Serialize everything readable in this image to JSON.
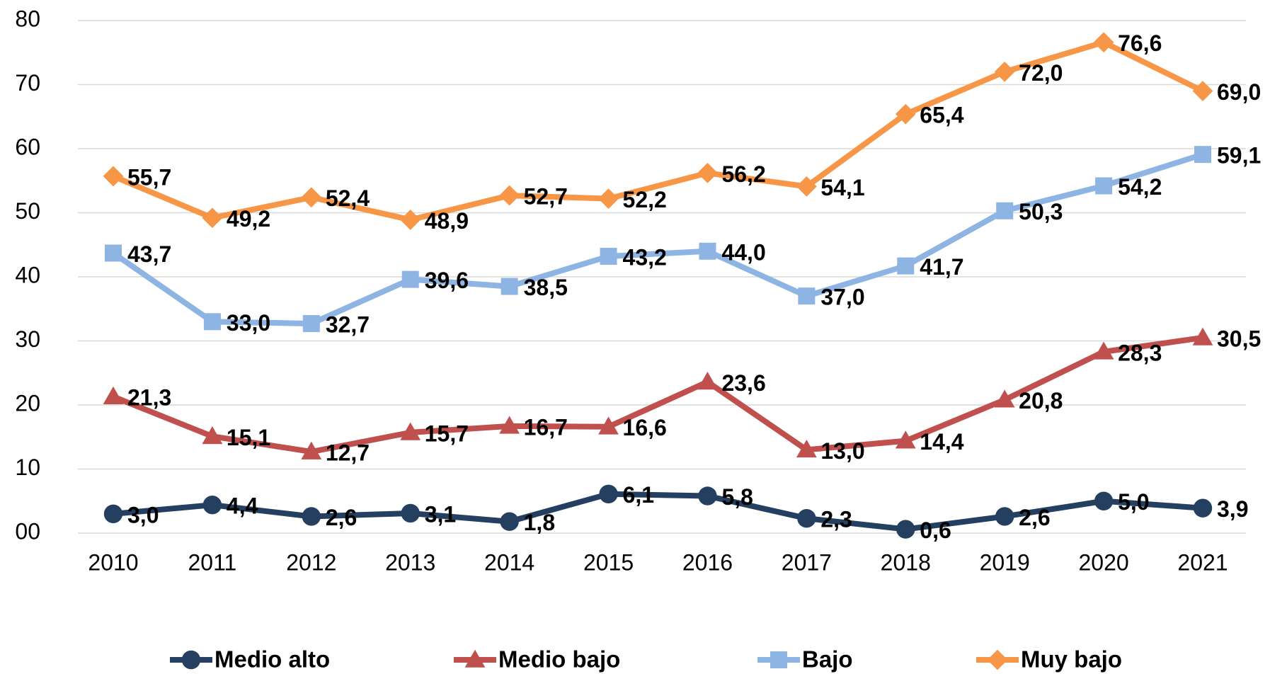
{
  "chart_data": {
    "type": "line",
    "categories": [
      "2010",
      "2011",
      "2012",
      "2013",
      "2014",
      "2015",
      "2016",
      "2017",
      "2018",
      "2019",
      "2020",
      "2021"
    ],
    "ylim": [
      0,
      80
    ],
    "yticks": [
      {
        "value": 0,
        "label": "00"
      },
      10,
      20,
      30,
      40,
      50,
      60,
      70,
      80
    ],
    "grid": true,
    "legend": "bottom",
    "series": [
      {
        "name": "Medio alto",
        "color": "#243f60",
        "marker": "circle",
        "values": [
          3.0,
          4.4,
          2.6,
          3.1,
          1.8,
          6.1,
          5.8,
          2.3,
          0.6,
          2.6,
          5.0,
          3.9
        ],
        "value_labels": [
          "3,0",
          "4,4",
          "2,6",
          "3,1",
          "1,8",
          "6,1",
          "5,8",
          "2,3",
          "0,6",
          "2,6",
          "5,0",
          "3,9"
        ]
      },
      {
        "name": "Medio bajo",
        "color": "#c0504d",
        "marker": "triangle",
        "values": [
          21.3,
          15.1,
          12.7,
          15.7,
          16.7,
          16.6,
          23.6,
          13.0,
          14.4,
          20.8,
          28.3,
          30.5
        ],
        "value_labels": [
          "21,3",
          "15,1",
          "12,7",
          "15,7",
          "16,7",
          "16,6",
          "23,6",
          "13,0",
          "14,4",
          "20,8",
          "28,3",
          "30,5"
        ]
      },
      {
        "name": "Bajo",
        "color": "#8eb4e3",
        "marker": "square",
        "values": [
          43.7,
          33.0,
          32.7,
          39.6,
          38.5,
          43.2,
          44.0,
          37.0,
          41.7,
          50.3,
          54.2,
          59.1
        ],
        "value_labels": [
          "43,7",
          "33,0",
          "32,7",
          "39,6",
          "38,5",
          "43,2",
          "44,0",
          "37,0",
          "41,7",
          "50,3",
          "54,2",
          "59,1"
        ]
      },
      {
        "name": "Muy bajo",
        "color": "#f79646",
        "marker": "diamond",
        "values": [
          55.7,
          49.2,
          52.4,
          48.9,
          52.7,
          52.2,
          56.2,
          54.1,
          65.4,
          72.0,
          76.6,
          69.0
        ],
        "value_labels": [
          "55,7",
          "49,2",
          "52,4",
          "48,9",
          "52,7",
          "52,2",
          "56,2",
          "54,1",
          "65,4",
          "72,0",
          "76,6",
          "69,0"
        ]
      }
    ]
  }
}
